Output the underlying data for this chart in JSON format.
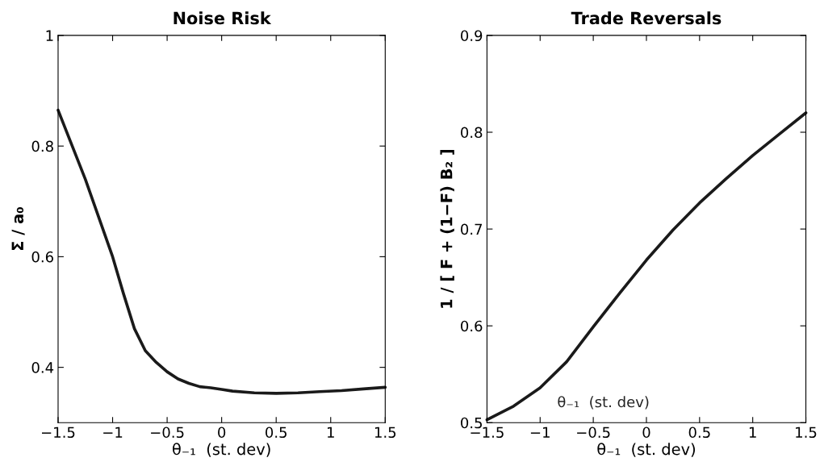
{
  "chart_data": [
    {
      "type": "line",
      "title": "Noise Risk",
      "xlabel": "θ₋₁  (st. dev)",
      "ylabel": "Σ / a₀",
      "x": [
        -1.5,
        -1.25,
        -1.0,
        -0.9,
        -0.8,
        -0.7,
        -0.6,
        -0.5,
        -0.4,
        -0.3,
        -0.2,
        -0.1,
        0,
        0.1,
        0.3,
        0.5,
        0.7,
        0.9,
        1.1,
        1.3,
        1.5
      ],
      "series": [
        {
          "color": "#1a1a1a",
          "values": [
            0.865,
            0.74,
            0.6,
            0.533,
            0.47,
            0.43,
            0.409,
            0.392,
            0.379,
            0.371,
            0.365,
            0.363,
            0.36,
            0.357,
            0.354,
            0.353,
            0.354,
            0.356,
            0.358,
            0.361,
            0.364
          ]
        }
      ],
      "xlim": [
        -1.5,
        1.5
      ],
      "ylim": [
        0.3,
        1
      ],
      "xticks": [
        {
          "value": -1.5,
          "label": "−1.5"
        },
        {
          "value": -1,
          "label": "−1"
        },
        {
          "value": -0.5,
          "label": "−0.5"
        },
        0,
        0.5,
        1,
        1.5
      ],
      "yticks": [
        0.4,
        0.6,
        0.8,
        1
      ],
      "line_style": "solid",
      "marker": "none"
    },
    {
      "type": "line",
      "title": "Trade Reversals",
      "xlabel": "θ₋₁  (st. dev)",
      "ylabel": "1 / [ F + (1−F) B₂ ]",
      "annotations": [
        "θ₋₁  (st. dev)"
      ],
      "x": [
        -1.5,
        -1.25,
        -1.0,
        -0.75,
        -0.5,
        -0.25,
        0,
        0.25,
        0.5,
        0.75,
        1.0,
        1.25,
        1.5
      ],
      "series": [
        {
          "color": "#1a1a1a",
          "values": [
            0.503,
            0.517,
            0.536,
            0.563,
            0.599,
            0.634,
            0.668,
            0.699,
            0.727,
            0.752,
            0.776,
            0.798,
            0.82
          ]
        }
      ],
      "xlim": [
        -1.5,
        1.5
      ],
      "ylim": [
        0.5,
        0.9
      ],
      "xticks": [
        {
          "value": -1.5,
          "label": "−1.5"
        },
        {
          "value": -1,
          "label": "−1"
        },
        {
          "value": -0.5,
          "label": "−0.5"
        },
        0,
        0.5,
        1,
        1.5
      ],
      "yticks": [
        0.5,
        0.6,
        0.7,
        0.8,
        0.9
      ],
      "line_style": "solid",
      "marker": "none"
    }
  ]
}
